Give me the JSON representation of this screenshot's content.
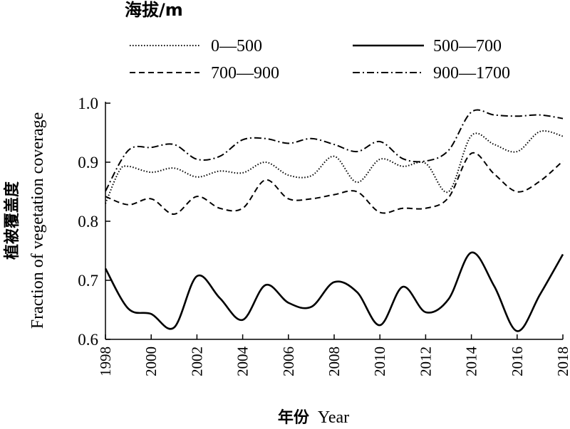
{
  "chart_data": {
    "type": "line",
    "legend_title": "海拔/m",
    "xlabel_cn": "年份",
    "xlabel_en": "Year",
    "ylabel_cn": "植被覆盖度",
    "ylabel_en": "Fraction of vegetation coverage",
    "xlim": [
      1998,
      2018
    ],
    "ylim": [
      0.6,
      1.0
    ],
    "x_ticks": [
      "1998",
      "2000",
      "2002",
      "2004",
      "2006",
      "2008",
      "2010",
      "2012",
      "2014",
      "2016",
      "2018"
    ],
    "y_ticks": [
      "0.6",
      "0.7",
      "0.8",
      "0.9",
      "1.0"
    ],
    "legend_position": "top",
    "series": [
      {
        "name": "0—500",
        "style": "dotted",
        "x": [
          1998,
          1998.6,
          1999,
          2000,
          2001,
          2002,
          2003,
          2004,
          2005,
          2006,
          2007,
          2008,
          2009,
          2010,
          2011,
          2012,
          2013,
          2014,
          2015,
          2016,
          2017,
          2018
        ],
        "y": [
          0.83,
          0.885,
          0.893,
          0.883,
          0.89,
          0.875,
          0.885,
          0.882,
          0.9,
          0.878,
          0.877,
          0.91,
          0.866,
          0.905,
          0.893,
          0.898,
          0.85,
          0.945,
          0.93,
          0.918,
          0.952,
          0.944
        ]
      },
      {
        "name": "500—700",
        "style": "solid",
        "x": [
          1998,
          1999,
          2000,
          2001,
          2002,
          2003,
          2004,
          2005,
          2006,
          2007,
          2008,
          2009,
          2010,
          2011,
          2012,
          2013,
          2014,
          2015,
          2016,
          2017,
          2018
        ],
        "y": [
          0.72,
          0.652,
          0.643,
          0.62,
          0.707,
          0.67,
          0.633,
          0.692,
          0.662,
          0.655,
          0.697,
          0.68,
          0.624,
          0.689,
          0.646,
          0.668,
          0.747,
          0.69,
          0.614,
          0.676,
          0.744
        ]
      },
      {
        "name": "700—900",
        "style": "dashed",
        "x": [
          1998,
          1999,
          2000,
          2001,
          2002,
          2003,
          2004,
          2005,
          2006,
          2007,
          2008,
          2009,
          2010,
          2011,
          2012,
          2013,
          2014,
          2015,
          2016,
          2017,
          2018
        ],
        "y": [
          0.842,
          0.828,
          0.838,
          0.812,
          0.842,
          0.822,
          0.822,
          0.87,
          0.838,
          0.838,
          0.845,
          0.85,
          0.815,
          0.822,
          0.822,
          0.84,
          0.915,
          0.88,
          0.85,
          0.868,
          0.902
        ]
      },
      {
        "name": "900—1700",
        "style": "dashdot",
        "x": [
          1998,
          1999,
          2000,
          2001,
          2002,
          2003,
          2004,
          2005,
          2006,
          2007,
          2008,
          2009,
          2010,
          2011,
          2012,
          2013,
          2014,
          2015,
          2016,
          2017,
          2018
        ],
        "y": [
          0.851,
          0.92,
          0.925,
          0.93,
          0.905,
          0.91,
          0.938,
          0.94,
          0.932,
          0.94,
          0.93,
          0.918,
          0.935,
          0.906,
          0.902,
          0.92,
          0.985,
          0.98,
          0.978,
          0.98,
          0.974
        ]
      }
    ]
  }
}
